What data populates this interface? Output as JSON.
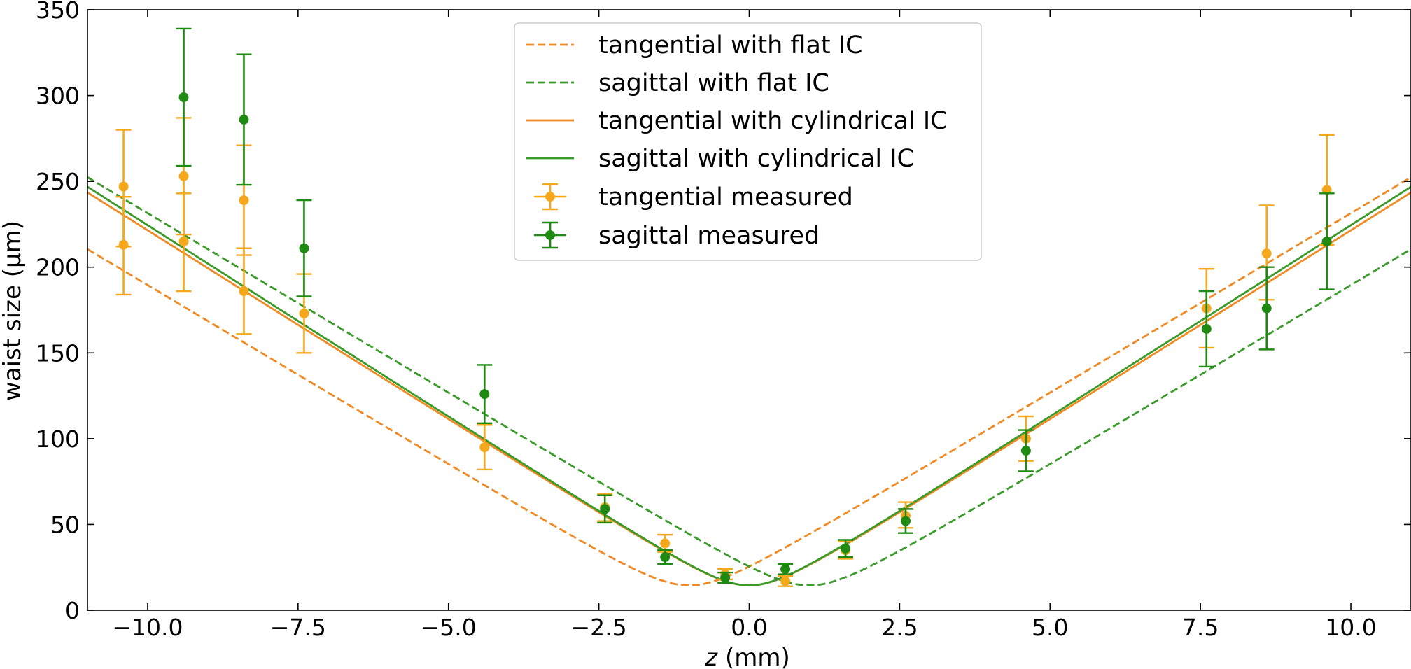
{
  "chart_data": {
    "type": "line",
    "xlabel": {
      "italic": "z",
      "rest": " (mm)"
    },
    "ylabel": "waist size (μm)",
    "xlim": [
      -11.0,
      11.0
    ],
    "ylim": [
      0,
      350
    ],
    "x_ticks": [
      -10.0,
      -7.5,
      -5.0,
      -2.5,
      0.0,
      2.5,
      5.0,
      7.5,
      10.0
    ],
    "x_tick_labels": [
      "−10.0",
      "−7.5",
      "−5.0",
      "−2.5",
      "0.0",
      "2.5",
      "5.0",
      "7.5",
      "10.0"
    ],
    "y_ticks": [
      0,
      50,
      100,
      150,
      200,
      250,
      300,
      350
    ],
    "y_tick_labels": [
      "0",
      "50",
      "100",
      "150",
      "200",
      "250",
      "300",
      "350"
    ],
    "grid": false,
    "legend_position": "top-center",
    "colors": {
      "tangential_fit": "#f08a24",
      "sagittal_fit": "#3a9a2a",
      "tangential_measured": "#f5a81c",
      "sagittal_measured": "#1f8a12"
    },
    "curves": [
      {
        "name": "tangential with flat IC",
        "style": "dashed",
        "color_key": "tangential_fit",
        "w0": 14.5,
        "z0": -1.0,
        "slope": 21.0
      },
      {
        "name": "sagittal with flat IC",
        "style": "dashed",
        "color_key": "sagittal_fit",
        "w0": 14.5,
        "z0": 1.0,
        "slope": 21.0
      },
      {
        "name": "tangential with cylindrical IC",
        "style": "solid",
        "color_key": "tangential_fit",
        "w0": 14.5,
        "z0": 0.0,
        "slope": 22.1
      },
      {
        "name": "sagittal with cylindrical IC",
        "style": "solid",
        "color_key": "sagittal_fit",
        "w0": 14.5,
        "z0": 0.0,
        "slope": 22.4
      }
    ],
    "measurements": [
      {
        "name": "tangential measured",
        "color_key": "tangential_measured",
        "points": [
          {
            "x": -10.4,
            "y": 247,
            "lo": 212,
            "hi": 280
          },
          {
            "x": -10.4,
            "y": 213,
            "lo": 184,
            "hi": 241
          },
          {
            "x": -9.4,
            "y": 253,
            "lo": 219,
            "hi": 287
          },
          {
            "x": -9.4,
            "y": 215,
            "lo": 186,
            "hi": 243
          },
          {
            "x": -8.4,
            "y": 239,
            "lo": 207,
            "hi": 271
          },
          {
            "x": -8.4,
            "y": 186,
            "lo": 161,
            "hi": 211
          },
          {
            "x": -7.4,
            "y": 173,
            "lo": 150,
            "hi": 196
          },
          {
            "x": -4.4,
            "y": 95,
            "lo": 82,
            "hi": 108
          },
          {
            "x": -2.4,
            "y": 60,
            "lo": 52,
            "hi": 68
          },
          {
            "x": -1.4,
            "y": 39,
            "lo": 34,
            "hi": 44
          },
          {
            "x": -0.4,
            "y": 21,
            "lo": 18,
            "hi": 24
          },
          {
            "x": 0.6,
            "y": 17,
            "lo": 14,
            "hi": 20
          },
          {
            "x": 1.6,
            "y": 35,
            "lo": 30,
            "hi": 40
          },
          {
            "x": 2.6,
            "y": 55,
            "lo": 48,
            "hi": 63
          },
          {
            "x": 4.6,
            "y": 100,
            "lo": 87,
            "hi": 113
          },
          {
            "x": 7.6,
            "y": 176,
            "lo": 153,
            "hi": 199
          },
          {
            "x": 8.6,
            "y": 208,
            "lo": 181,
            "hi": 236
          },
          {
            "x": 9.6,
            "y": 245,
            "lo": 213,
            "hi": 277
          }
        ]
      },
      {
        "name": "sagittal measured",
        "color_key": "sagittal_measured",
        "points": [
          {
            "x": -9.4,
            "y": 299,
            "lo": 259,
            "hi": 339
          },
          {
            "x": -8.4,
            "y": 286,
            "lo": 248,
            "hi": 324
          },
          {
            "x": -7.4,
            "y": 211,
            "lo": 183,
            "hi": 239
          },
          {
            "x": -4.4,
            "y": 126,
            "lo": 109,
            "hi": 143
          },
          {
            "x": -2.4,
            "y": 59,
            "lo": 51,
            "hi": 67
          },
          {
            "x": -1.4,
            "y": 31,
            "lo": 27,
            "hi": 35
          },
          {
            "x": -0.4,
            "y": 19,
            "lo": 16,
            "hi": 22
          },
          {
            "x": 0.6,
            "y": 24,
            "lo": 21,
            "hi": 27
          },
          {
            "x": 1.6,
            "y": 36,
            "lo": 31,
            "hi": 41
          },
          {
            "x": 2.6,
            "y": 52,
            "lo": 45,
            "hi": 59
          },
          {
            "x": 4.6,
            "y": 93,
            "lo": 81,
            "hi": 105
          },
          {
            "x": 7.6,
            "y": 164,
            "lo": 142,
            "hi": 186
          },
          {
            "x": 8.6,
            "y": 176,
            "lo": 152,
            "hi": 200
          },
          {
            "x": 9.6,
            "y": 215,
            "lo": 187,
            "hi": 243
          }
        ]
      }
    ]
  }
}
